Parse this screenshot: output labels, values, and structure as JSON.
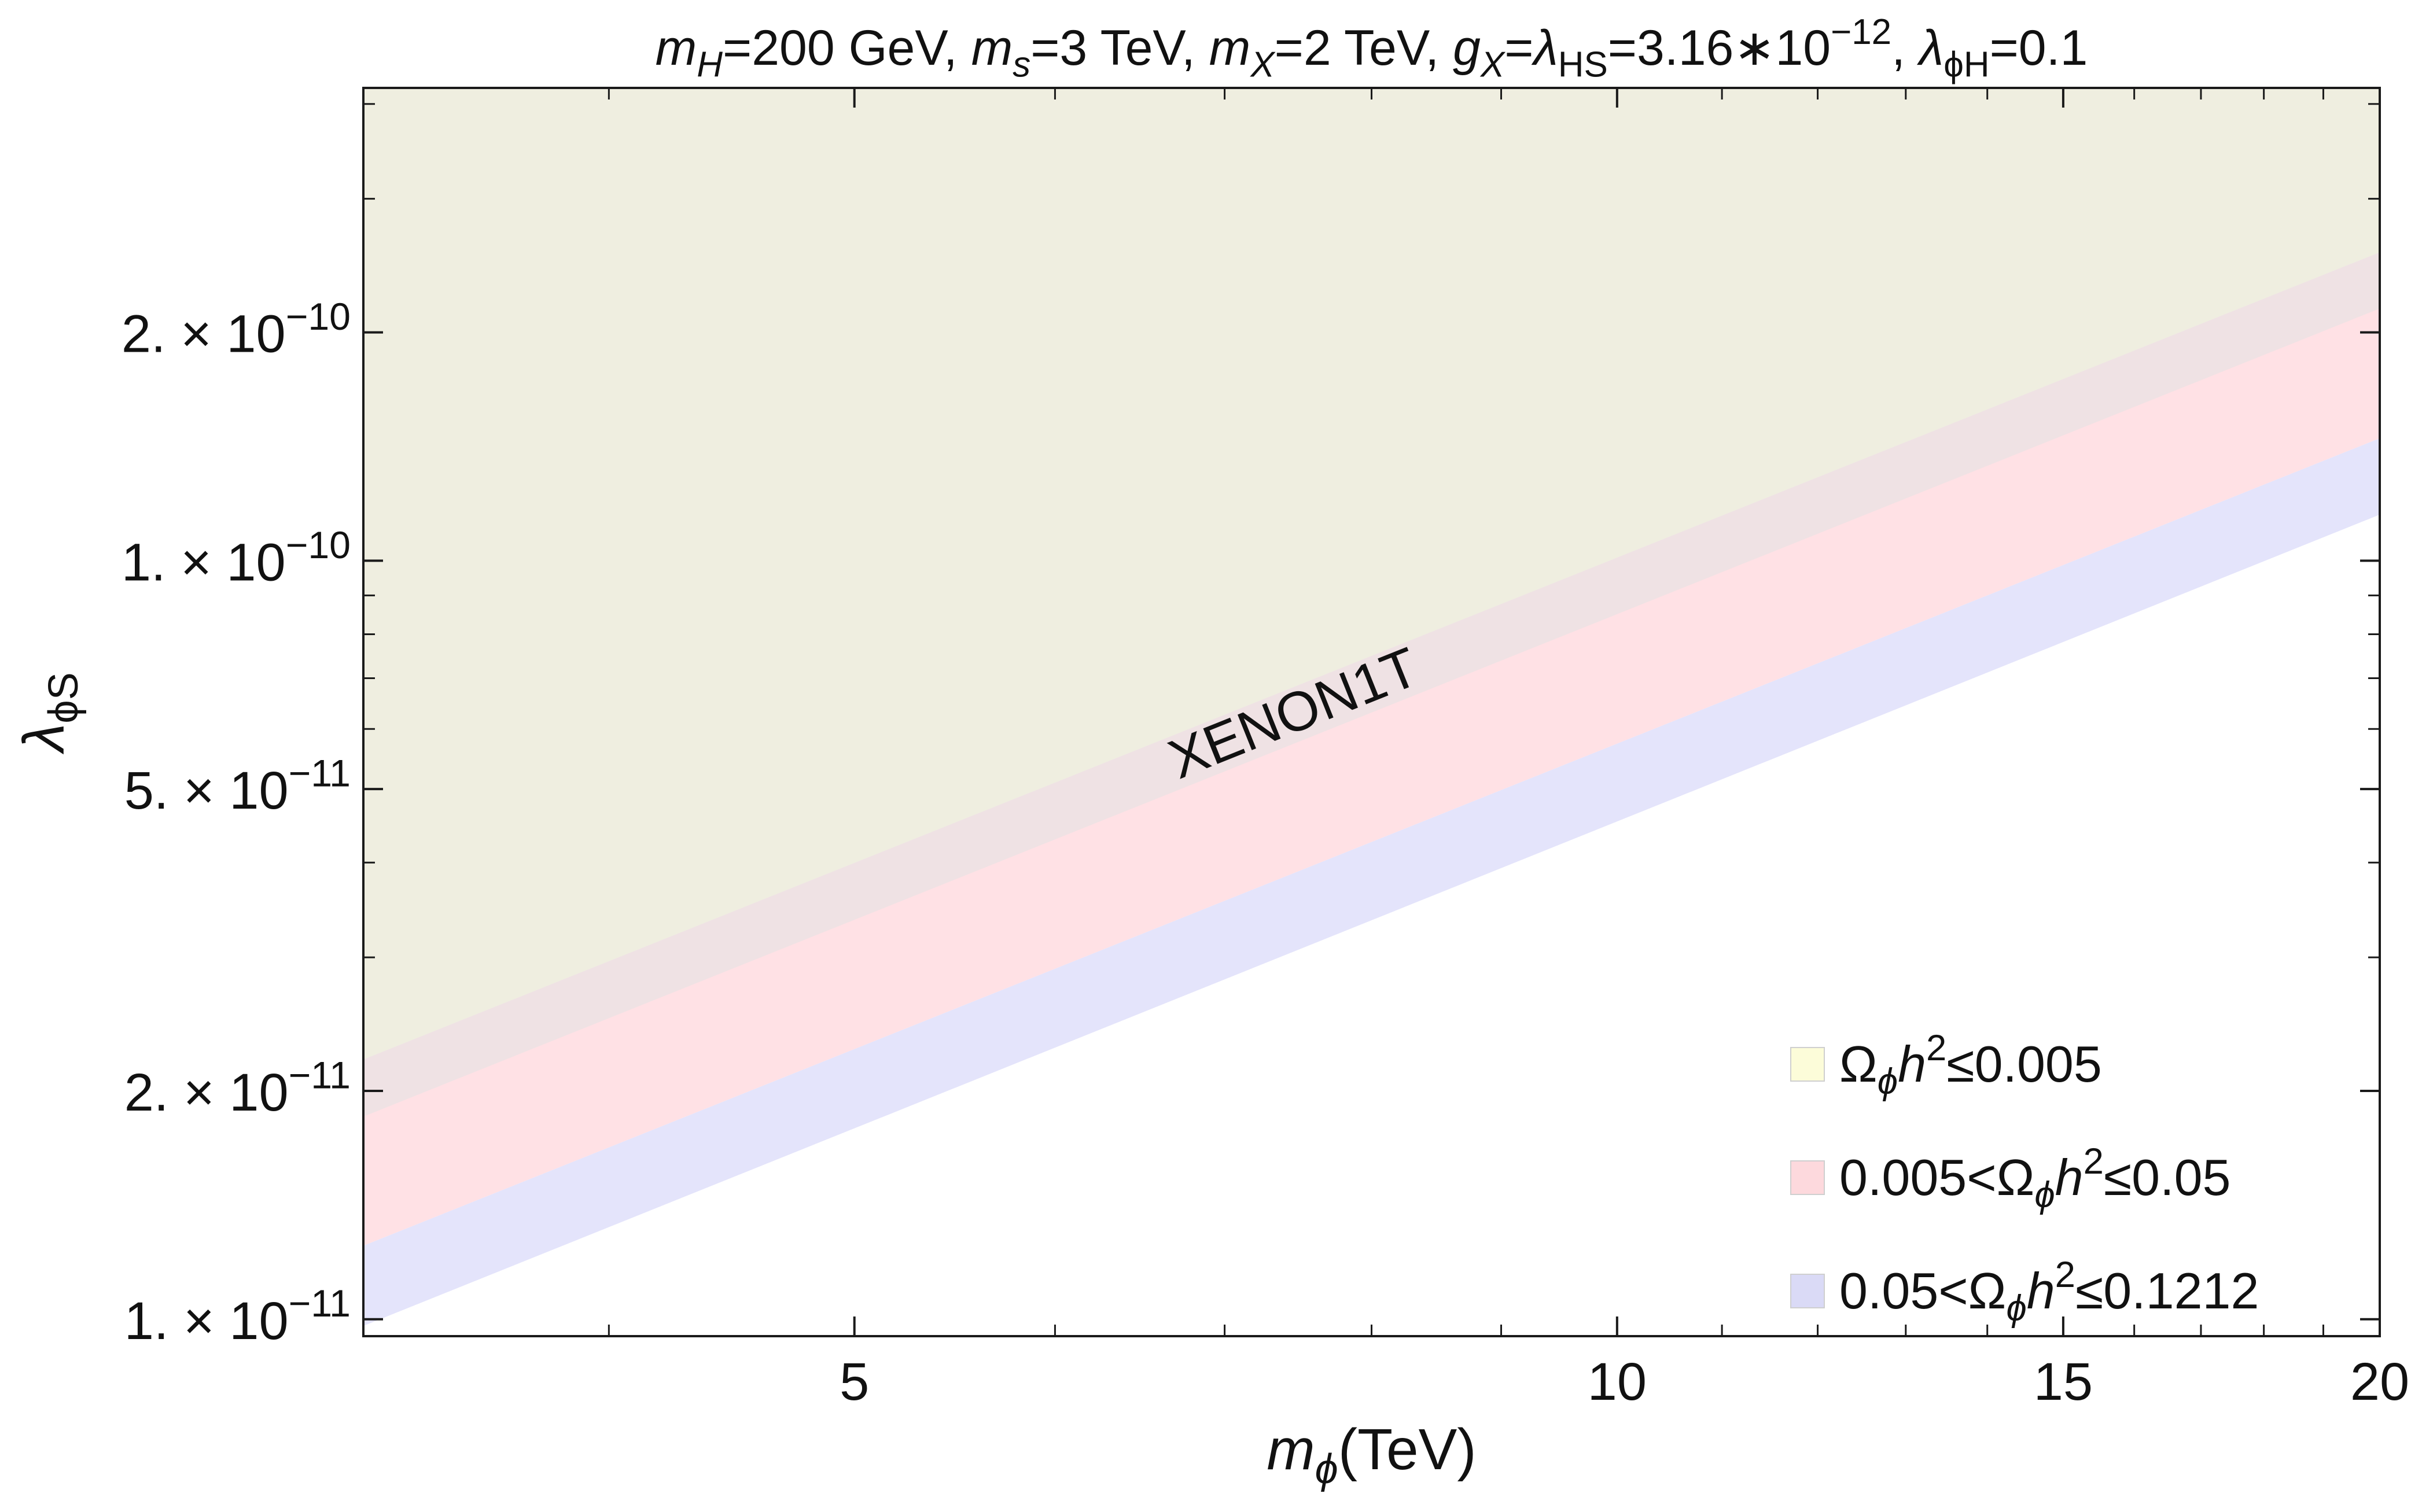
{
  "chart_data": {
    "type": "area",
    "title": {
      "label": "m_H=200 GeV, m_s=3 TeV, m_X=2 TeV, g_X=λ_HS=3.16∗10^-12, λ_ϕH=0.1",
      "parts": [
        {
          "t": "m",
          "i": true
        },
        {
          "t": "H",
          "sub": true,
          "i": true
        },
        {
          "t": "=200 GeV, "
        },
        {
          "t": "m",
          "i": true
        },
        {
          "t": "s",
          "sub": true,
          "i": true
        },
        {
          "t": "=3 TeV, "
        },
        {
          "t": "m",
          "i": true
        },
        {
          "t": "X",
          "sub": true,
          "i": true
        },
        {
          "t": "=2 TeV, "
        },
        {
          "t": "g",
          "i": true
        },
        {
          "t": "X",
          "sub": true,
          "i": true
        },
        {
          "t": "="
        },
        {
          "t": "λ",
          "i": true
        },
        {
          "t": "HS",
          "sub": true
        },
        {
          "t": "=3.16∗10"
        },
        {
          "t": "−12",
          "sup": true
        },
        {
          "t": ", "
        },
        {
          "t": "λ",
          "i": true
        },
        {
          "t": "ϕH",
          "sub": true
        },
        {
          "t": "=0.1"
        }
      ]
    },
    "xlabel": {
      "label": "m_ϕ(TeV)",
      "parts": [
        {
          "t": "m",
          "i": true
        },
        {
          "t": "ϕ",
          "sub": true,
          "i": true
        },
        {
          "t": "(TeV)"
        }
      ]
    },
    "ylabel": {
      "label": "λ_ϕS",
      "parts": [
        {
          "t": "λ",
          "i": true
        },
        {
          "t": "ϕS",
          "sub": true
        }
      ]
    },
    "x_scale": "log",
    "y_scale": "log",
    "xlim": [
      3.2,
      20
    ],
    "ylim": [
      9.5e-12,
      4.2e-10
    ],
    "x_ticks": [
      {
        "value": 5,
        "label": "5"
      },
      {
        "value": 10,
        "label": "10"
      },
      {
        "value": 15,
        "label": "15"
      },
      {
        "value": 20,
        "label": "20"
      }
    ],
    "x_minor_ticks": [
      4,
      6,
      7,
      8,
      9,
      11,
      12,
      13,
      14,
      16,
      17,
      18,
      19
    ],
    "y_ticks": [
      {
        "value": 1e-11,
        "mant": "1.",
        "exp": "−11"
      },
      {
        "value": 2e-11,
        "mant": "2.",
        "exp": "−11"
      },
      {
        "value": 5e-11,
        "mant": "5.",
        "exp": "−11"
      },
      {
        "value": 1e-10,
        "mant": "1.",
        "exp": "−10"
      },
      {
        "value": 2e-10,
        "mant": "2.",
        "exp": "−10"
      }
    ],
    "y_minor_ticks": [
      3e-11,
      4e-11,
      6e-11,
      7e-11,
      8e-11,
      9e-11,
      3e-10,
      4e-10
    ],
    "grid": false,
    "legend_position": "bottom-right",
    "series": [
      {
        "name": "Ω_ϕh²≤0.005",
        "legend_parts": [
          {
            "t": "Ω"
          },
          {
            "t": "ϕ",
            "sub": true,
            "i": true
          },
          {
            "t": "h",
            "i": true
          },
          {
            "t": "2",
            "sup": true
          },
          {
            "t": "≤0.005"
          }
        ],
        "fill": "#ffffdc",
        "legend_swatch": "#fcfcd9",
        "x": [
          3.2,
          20
        ],
        "lower": [
          2.2e-11,
          2.55e-10
        ],
        "upper": [
          4.2e-10,
          4.2e-10
        ]
      },
      {
        "name": "0.005<Ω_ϕh²≤0.05",
        "legend_parts": [
          {
            "t": "0.005<Ω"
          },
          {
            "t": "ϕ",
            "sub": true,
            "i": true
          },
          {
            "t": "h",
            "i": true
          },
          {
            "t": "2",
            "sup": true
          },
          {
            "t": "≤0.05"
          }
        ],
        "fill": "#ffe1e5",
        "legend_swatch": "#fdd9dd",
        "x": [
          3.2,
          20
        ],
        "lower": [
          1.25e-11,
          1.45e-10
        ],
        "upper": [
          2.2e-11,
          2.55e-10
        ]
      },
      {
        "name": "0.05<Ω_ϕh²≤0.1212",
        "legend_parts": [
          {
            "t": "0.05<Ω"
          },
          {
            "t": "ϕ",
            "sub": true,
            "i": true
          },
          {
            "t": "h",
            "i": true
          },
          {
            "t": "2",
            "sup": true
          },
          {
            "t": "≤0.1212"
          }
        ],
        "fill": "#e4e4fb",
        "legend_swatch": "#dadaf6",
        "x": [
          3.2,
          20
        ],
        "lower": [
          9.8e-12,
          1.15e-10
        ],
        "upper": [
          1.25e-11,
          1.45e-10
        ]
      }
    ],
    "exclusion_regions": [
      {
        "label": "XENON1T",
        "fill": "#e4e2e2",
        "opacity": 0.6,
        "label_x": 7.5,
        "x": [
          3.2,
          20
        ],
        "lower": [
          1.85e-11,
          2.15e-10
        ],
        "upper": [
          4.2e-10,
          4.2e-10
        ]
      }
    ]
  }
}
